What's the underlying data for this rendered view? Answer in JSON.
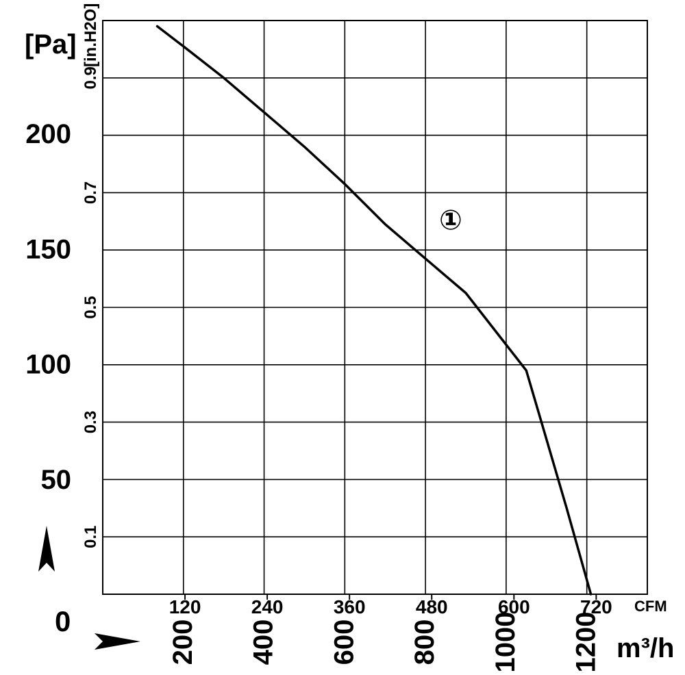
{
  "chart_data": {
    "type": "line",
    "title": "",
    "y_unit_pa": "[Pa]",
    "y_unit_inh2o": "[in.H2O]",
    "x_unit_cfm": "CFM",
    "x_unit_m3h": "m³/h",
    "origin_label": "0",
    "curve_label": "①",
    "y_pa_ticks": [
      {
        "value": 200,
        "label": "200"
      },
      {
        "value": 150,
        "label": "150"
      },
      {
        "value": 100,
        "label": "100"
      },
      {
        "value": 50,
        "label": "50"
      }
    ],
    "y_inh2o_ticks": [
      {
        "value": 0.9,
        "label": "0.9"
      },
      {
        "value": 0.7,
        "label": "0.7"
      },
      {
        "value": 0.5,
        "label": "0.5"
      },
      {
        "value": 0.3,
        "label": "0.3"
      },
      {
        "value": 0.1,
        "label": "0.1"
      }
    ],
    "x_cfm_ticks": [
      {
        "value": 120,
        "label": "120"
      },
      {
        "value": 240,
        "label": "240"
      },
      {
        "value": 360,
        "label": "360"
      },
      {
        "value": 480,
        "label": "480"
      },
      {
        "value": 600,
        "label": "600"
      },
      {
        "value": 720,
        "label": "720"
      }
    ],
    "x_m3h_ticks": [
      {
        "value": 200,
        "label": "200"
      },
      {
        "value": 400,
        "label": "400"
      },
      {
        "value": 600,
        "label": "600"
      },
      {
        "value": 800,
        "label": "800"
      },
      {
        "value": 1000,
        "label": "1000"
      },
      {
        "value": 1200,
        "label": "1200"
      }
    ],
    "xlim_m3h": [
      0,
      1350
    ],
    "ylim_inh2o": [
      0,
      1.0
    ],
    "grid": true,
    "series": [
      {
        "x_m3h": [
          135,
          200,
          300,
          400,
          500,
          600,
          700,
          800,
          900,
          1000,
          1050,
          1100,
          1150,
          1210
        ],
        "y_inh2o": [
          0.99,
          0.955,
          0.9,
          0.84,
          0.78,
          0.715,
          0.645,
          0.585,
          0.525,
          0.435,
          0.39,
          0.27,
          0.15,
          0.0
        ]
      }
    ]
  }
}
